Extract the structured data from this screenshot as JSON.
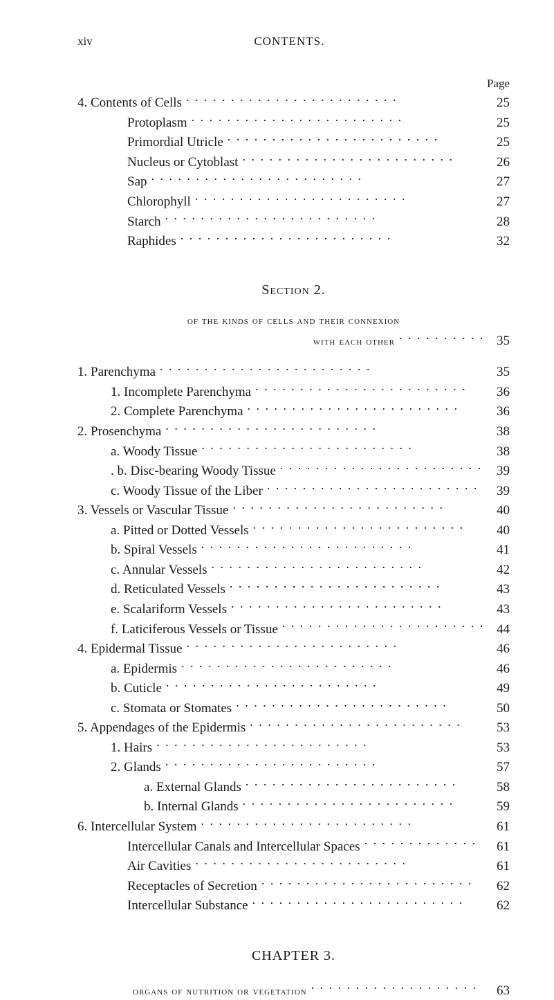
{
  "page": {
    "folio": "xiv",
    "running_title": "CONTENTS.",
    "page_col_head": "Page"
  },
  "block1": [
    {
      "indent": "ind-0",
      "label": "4. Contents of Cells",
      "page": "25"
    },
    {
      "indent": "ind-1",
      "label": "Protoplasm",
      "page": "25"
    },
    {
      "indent": "ind-1",
      "label": "Primordial Utricle",
      "page": "25"
    },
    {
      "indent": "ind-1",
      "label": "Nucleus or Cytoblast",
      "page": "26"
    },
    {
      "indent": "ind-1",
      "label": "Sap",
      "page": "27"
    },
    {
      "indent": "ind-1",
      "label": "Chlorophyll",
      "page": "27"
    },
    {
      "indent": "ind-1",
      "label": "Starch",
      "page": "28"
    },
    {
      "indent": "ind-1",
      "label": "Raphides",
      "page": "32"
    }
  ],
  "section2": {
    "heading": "Section 2.",
    "sub1": "of the kinds of cells and their connexion",
    "sub2": "with each other",
    "sub2_page": "35"
  },
  "block2": [
    {
      "indent": "ind-0",
      "label": "1. Parenchyma",
      "page": "35"
    },
    {
      "indent": "ind-2",
      "label": "1. Incomplete Parenchyma",
      "page": "36"
    },
    {
      "indent": "ind-2",
      "label": "2. Complete Parenchyma",
      "page": "36"
    },
    {
      "indent": "ind-0",
      "label": "2. Prosenchyma",
      "page": "38"
    },
    {
      "indent": "ind-2",
      "label": "a. Woody Tissue",
      "page": "38"
    },
    {
      "indent": "ind-2",
      "label": ". b. Disc-bearing Woody Tissue",
      "page": "39"
    },
    {
      "indent": "ind-2",
      "label": "c. Woody Tissue of the Liber",
      "page": "39"
    },
    {
      "indent": "ind-0",
      "label": "3. Vessels or Vascular Tissue",
      "page": "40"
    },
    {
      "indent": "ind-2",
      "label": "a. Pitted or Dotted Vessels",
      "page": "40"
    },
    {
      "indent": "ind-2",
      "label": "b. Spiral Vessels",
      "page": "41"
    },
    {
      "indent": "ind-2",
      "label": "c. Annular Vessels",
      "page": "42"
    },
    {
      "indent": "ind-2",
      "label": "d. Reticulated Vessels",
      "page": "43"
    },
    {
      "indent": "ind-2",
      "label": "e. Scalariform Vessels",
      "page": "43"
    },
    {
      "indent": "ind-2",
      "label": "f. Laticiferous Vessels or Tissue",
      "page": "44"
    },
    {
      "indent": "ind-0",
      "label": "4. Epidermal Tissue",
      "page": "46"
    },
    {
      "indent": "ind-2",
      "label": "a. Epidermis",
      "page": "46"
    },
    {
      "indent": "ind-2",
      "label": "b. Cuticle",
      "page": "49"
    },
    {
      "indent": "ind-2",
      "label": "c. Stomata or Stomates",
      "page": "50"
    },
    {
      "indent": "ind-0",
      "label": "5. Appendages of the Epidermis",
      "page": "53"
    },
    {
      "indent": "ind-2",
      "label": "1. Hairs",
      "page": "53"
    },
    {
      "indent": "ind-2",
      "label": "2. Glands",
      "page": "57"
    },
    {
      "indent": "ind-3",
      "label": "a. External Glands",
      "page": "58"
    },
    {
      "indent": "ind-3",
      "label": "b. Internal Glands",
      "page": "59"
    },
    {
      "indent": "ind-0",
      "label": "6. Intercellular System",
      "page": "61"
    },
    {
      "indent": "ind-1",
      "label": "Intercellular Canals and Intercellular Spaces",
      "page": "61"
    },
    {
      "indent": "ind-1",
      "label": "Air Cavities",
      "page": "61"
    },
    {
      "indent": "ind-1",
      "label": "Receptacles of Secretion",
      "page": "62"
    },
    {
      "indent": "ind-1",
      "label": "Intercellular Substance",
      "page": "62"
    }
  ],
  "chapter3": {
    "heading": "CHAPTER 3.",
    "sub": "organs of nutrition or vegetation",
    "page": "63"
  }
}
